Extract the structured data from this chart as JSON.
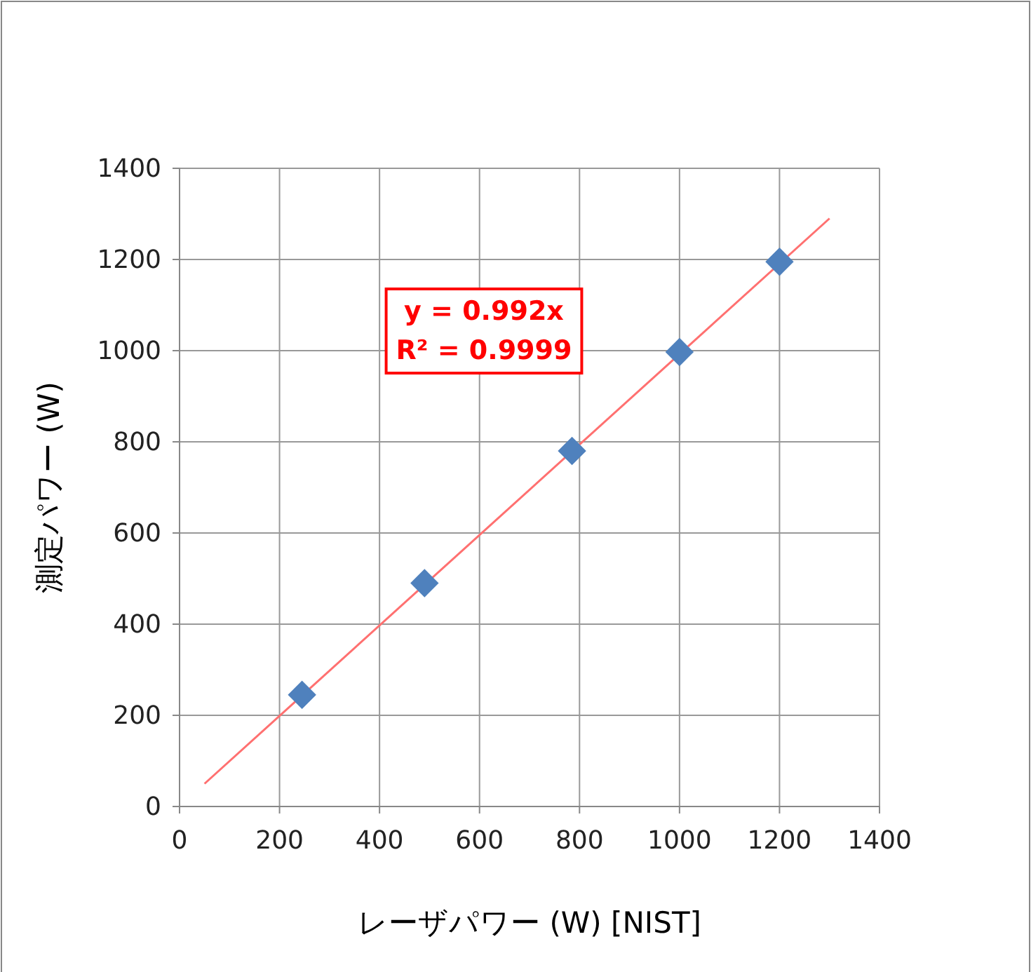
{
  "chart_data": {
    "type": "scatter",
    "xlabel": "レーザパワー (W) [NIST]",
    "ylabel": "測定パワー (W)",
    "xlim": [
      0,
      1400
    ],
    "xticks": [
      0,
      200,
      400,
      600,
      800,
      1000,
      1200,
      1400
    ],
    "ylim": [
      0,
      1400
    ],
    "yticks": [
      0,
      200,
      400,
      600,
      800,
      1000,
      1200,
      1400
    ],
    "grid": true,
    "marker": "diamond",
    "series": [
      {
        "color": "#4f81bd",
        "x": [
          245,
          490,
          785,
          1000,
          1200
        ],
        "values": [
          245,
          490,
          780,
          997,
          1195
        ]
      },
      {
        "type": "line",
        "color": "#ff7070",
        "marker": "none",
        "line_style": "solid",
        "x": [
          50,
          1300
        ],
        "values": [
          50,
          1290
        ]
      }
    ],
    "annotations": [
      "y = 0.992x",
      "R² = 0.9999"
    ]
  }
}
